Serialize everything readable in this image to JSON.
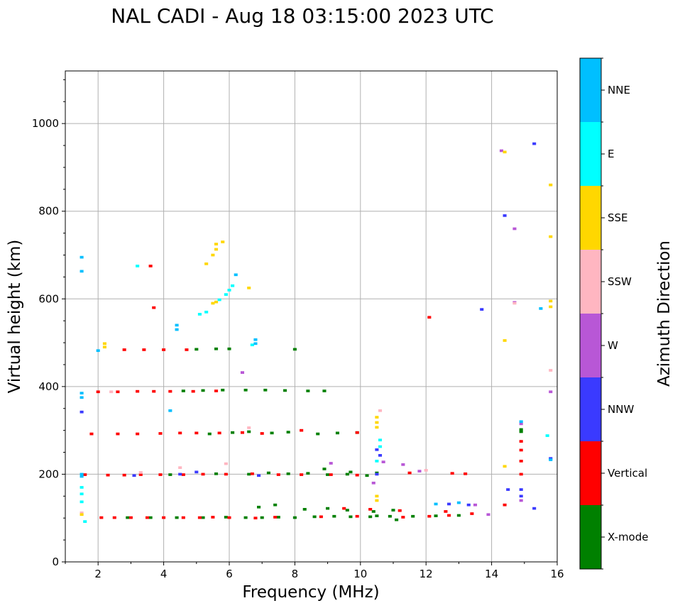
{
  "chart_data": {
    "type": "scatter",
    "title": "NAL CADI - Aug 18 03:15:00 2023 UTC",
    "xlabel": "Frequency (MHz)",
    "ylabel": "Virtual height (km)",
    "xlim": [
      1,
      16
    ],
    "ylim": [
      0,
      1120
    ],
    "xticks": [
      2,
      4,
      6,
      8,
      10,
      12,
      14,
      16
    ],
    "yticks": [
      0,
      200,
      400,
      600,
      800,
      1000
    ],
    "grid": true,
    "colorbar": {
      "label": "Azimuth Direction",
      "categories": [
        "X-mode",
        "Vertical",
        "NNW",
        "W",
        "SSW",
        "SSE",
        "E",
        "NNE"
      ],
      "colors": [
        "#008000",
        "#ff0000",
        "#3a3aff",
        "#b857d6",
        "#ffb6c1",
        "#ffd700",
        "#00ffff",
        "#00bfff"
      ]
    },
    "series": [
      {
        "name": "X-mode",
        "points": [
          [
            2.9,
            101
          ],
          [
            3.6,
            101
          ],
          [
            4.4,
            101
          ],
          [
            5.2,
            101
          ],
          [
            5.9,
            102
          ],
          [
            6.5,
            101
          ],
          [
            7.0,
            101
          ],
          [
            7.5,
            102
          ],
          [
            8.0,
            101
          ],
          [
            8.6,
            103
          ],
          [
            9.2,
            104
          ],
          [
            9.7,
            103
          ],
          [
            10.3,
            103
          ],
          [
            10.9,
            104
          ],
          [
            11.6,
            104
          ],
          [
            12.3,
            105
          ],
          [
            13.0,
            106
          ],
          [
            8.3,
            120
          ],
          [
            9.0,
            122
          ],
          [
            9.6,
            118
          ],
          [
            10.4,
            115
          ],
          [
            11.0,
            118
          ],
          [
            7.4,
            130
          ],
          [
            6.9,
            125
          ],
          [
            4.2,
            199
          ],
          [
            5.6,
            201
          ],
          [
            6.6,
            200
          ],
          [
            7.2,
            203
          ],
          [
            7.8,
            201
          ],
          [
            8.4,
            202
          ],
          [
            9.0,
            199
          ],
          [
            9.6,
            200
          ],
          [
            10.2,
            197
          ],
          [
            8.9,
            212
          ],
          [
            9.7,
            205
          ],
          [
            10.5,
            203
          ],
          [
            5.4,
            292
          ],
          [
            6.1,
            295
          ],
          [
            6.6,
            297
          ],
          [
            7.3,
            294
          ],
          [
            7.8,
            296
          ],
          [
            8.7,
            292
          ],
          [
            9.3,
            294
          ],
          [
            9.9,
            295
          ],
          [
            4.6,
            390
          ],
          [
            5.2,
            391
          ],
          [
            5.8,
            392
          ],
          [
            6.5,
            392
          ],
          [
            7.1,
            392
          ],
          [
            7.7,
            391
          ],
          [
            8.4,
            390
          ],
          [
            8.9,
            390
          ],
          [
            5.0,
            485
          ],
          [
            5.6,
            486
          ],
          [
            6.0,
            486
          ],
          [
            8.0,
            485
          ],
          [
            14.9,
            297
          ],
          [
            14.9,
            302
          ],
          [
            10.5,
            105
          ],
          [
            11.1,
            96
          ]
        ]
      },
      {
        "name": "Vertical",
        "points": [
          [
            2.1,
            101
          ],
          [
            2.5,
            101
          ],
          [
            3.0,
            101
          ],
          [
            3.5,
            101
          ],
          [
            4.0,
            101
          ],
          [
            4.6,
            101
          ],
          [
            5.1,
            101
          ],
          [
            5.5,
            102
          ],
          [
            6.0,
            101
          ],
          [
            6.8,
            100
          ],
          [
            7.4,
            102
          ],
          [
            8.8,
            103
          ],
          [
            9.9,
            104
          ],
          [
            11.3,
            102
          ],
          [
            12.1,
            104
          ],
          [
            12.7,
            106
          ],
          [
            13.4,
            110
          ],
          [
            14.4,
            130
          ],
          [
            9.5,
            122
          ],
          [
            10.3,
            120
          ],
          [
            11.2,
            117
          ],
          [
            12.6,
            115
          ],
          [
            1.6,
            199
          ],
          [
            2.3,
            198
          ],
          [
            2.8,
            198
          ],
          [
            3.3,
            199
          ],
          [
            3.9,
            199
          ],
          [
            4.6,
            199
          ],
          [
            5.2,
            200
          ],
          [
            5.9,
            200
          ],
          [
            6.7,
            201
          ],
          [
            7.5,
            199
          ],
          [
            8.2,
            199
          ],
          [
            9.1,
            199
          ],
          [
            9.9,
            198
          ],
          [
            12.8,
            202
          ],
          [
            13.2,
            201
          ],
          [
            11.5,
            203
          ],
          [
            1.8,
            292
          ],
          [
            2.6,
            292
          ],
          [
            3.2,
            292
          ],
          [
            3.9,
            293
          ],
          [
            4.5,
            294
          ],
          [
            5.0,
            294
          ],
          [
            5.7,
            294
          ],
          [
            6.4,
            295
          ],
          [
            7.0,
            293
          ],
          [
            8.2,
            300
          ],
          [
            9.9,
            295
          ],
          [
            2.0,
            388
          ],
          [
            2.6,
            388
          ],
          [
            3.2,
            389
          ],
          [
            3.7,
            389
          ],
          [
            4.2,
            389
          ],
          [
            4.9,
            389
          ],
          [
            5.6,
            390
          ],
          [
            2.8,
            484
          ],
          [
            3.4,
            484
          ],
          [
            4.0,
            484
          ],
          [
            4.7,
            484
          ],
          [
            14.9,
            230
          ],
          [
            14.9,
            255
          ],
          [
            14.9,
            200
          ],
          [
            14.9,
            275
          ],
          [
            12.1,
            558
          ],
          [
            3.7,
            580
          ],
          [
            3.6,
            675
          ]
        ]
      },
      {
        "name": "NNW",
        "points": [
          [
            3.1,
            197
          ],
          [
            4.5,
            200
          ],
          [
            5.0,
            205
          ],
          [
            6.9,
            197
          ],
          [
            10.6,
            243
          ],
          [
            10.5,
            256
          ],
          [
            10.5,
            200
          ],
          [
            12.7,
            132
          ],
          [
            13.3,
            130
          ],
          [
            14.5,
            165
          ],
          [
            14.9,
            150
          ],
          [
            14.9,
            165
          ],
          [
            15.3,
            122
          ],
          [
            1.5,
            342
          ],
          [
            13.7,
            576
          ],
          [
            14.4,
            790
          ],
          [
            15.3,
            954
          ],
          [
            15.8,
            236
          ]
        ]
      },
      {
        "name": "W",
        "points": [
          [
            10.4,
            180
          ],
          [
            9.1,
            225
          ],
          [
            10.7,
            228
          ],
          [
            11.3,
            222
          ],
          [
            11.8,
            207
          ],
          [
            13.5,
            130
          ],
          [
            13.9,
            108
          ],
          [
            14.9,
            140
          ],
          [
            14.9,
            315
          ],
          [
            14.7,
            760
          ],
          [
            14.7,
            592
          ],
          [
            6.4,
            432
          ],
          [
            15.8,
            388
          ],
          [
            14.3,
            938
          ]
        ]
      },
      {
        "name": "SSW",
        "points": [
          [
            1.5,
            112
          ],
          [
            3.3,
            204
          ],
          [
            4.5,
            215
          ],
          [
            5.9,
            224
          ],
          [
            6.6,
            306
          ],
          [
            12.0,
            209
          ],
          [
            14.7,
            590
          ],
          [
            15.8,
            437
          ],
          [
            10.6,
            345
          ],
          [
            2.4,
            388
          ]
        ]
      },
      {
        "name": "SSE",
        "points": [
          [
            1.5,
            108
          ],
          [
            10.5,
            307
          ],
          [
            10.5,
            318
          ],
          [
            10.5,
            330
          ],
          [
            10.5,
            150
          ],
          [
            10.5,
            140
          ],
          [
            14.4,
            218
          ],
          [
            14.4,
            505
          ],
          [
            14.4,
            935
          ],
          [
            15.8,
            860
          ],
          [
            15.8,
            742
          ],
          [
            15.8,
            595
          ],
          [
            15.8,
            582
          ],
          [
            5.3,
            680
          ],
          [
            5.5,
            700
          ],
          [
            5.6,
            713
          ],
          [
            5.8,
            730
          ],
          [
            5.6,
            725
          ],
          [
            5.5,
            590
          ],
          [
            5.6,
            593
          ],
          [
            6.6,
            625
          ],
          [
            2.2,
            498
          ],
          [
            2.2,
            490
          ]
        ]
      },
      {
        "name": "E",
        "points": [
          [
            1.5,
            170
          ],
          [
            1.5,
            155
          ],
          [
            1.5,
            137
          ],
          [
            1.6,
            92
          ],
          [
            5.1,
            565
          ],
          [
            5.3,
            570
          ],
          [
            5.7,
            598
          ],
          [
            5.9,
            610
          ],
          [
            6.0,
            620
          ],
          [
            6.1,
            630
          ],
          [
            6.7,
            495
          ],
          [
            10.6,
            278
          ],
          [
            10.6,
            263
          ],
          [
            10.5,
            230
          ],
          [
            15.7,
            288
          ],
          [
            3.2,
            675
          ]
        ]
      },
      {
        "name": "NNE",
        "points": [
          [
            1.5,
            385
          ],
          [
            1.5,
            375
          ],
          [
            1.5,
            200
          ],
          [
            1.5,
            195
          ],
          [
            1.5,
            663
          ],
          [
            1.5,
            695
          ],
          [
            2.0,
            482
          ],
          [
            4.4,
            530
          ],
          [
            4.4,
            540
          ],
          [
            6.2,
            655
          ],
          [
            6.8,
            498
          ],
          [
            6.8,
            507
          ],
          [
            4.2,
            345
          ],
          [
            12.3,
            132
          ],
          [
            13.0,
            135
          ],
          [
            14.9,
            320
          ],
          [
            15.5,
            578
          ],
          [
            15.8,
            233
          ]
        ]
      }
    ]
  }
}
